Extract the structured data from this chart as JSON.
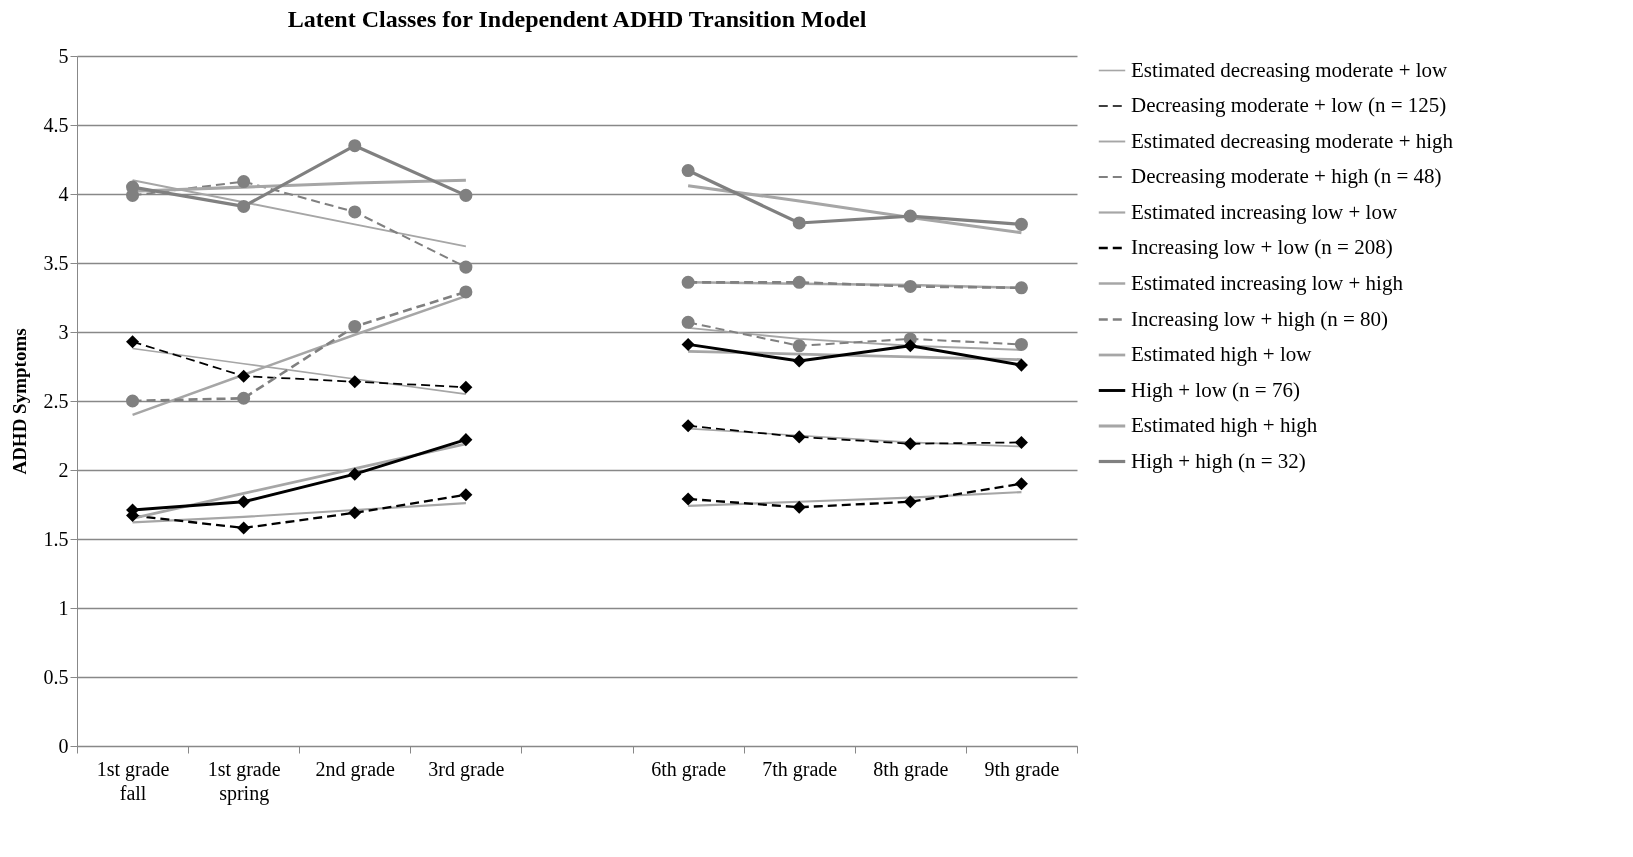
{
  "chart_data": {
    "type": "line",
    "title": "Latent Classes for Independent ADHD Transition Model",
    "ylabel": "ADHD Symptoms",
    "categories": [
      "1st grade fall",
      "1st grade spring",
      "2nd grade",
      "3rd grade",
      null,
      "6th grade",
      "7th grade",
      "8th grade",
      "9th grade"
    ],
    "ylim": [
      0,
      5
    ],
    "yticks": [
      0,
      0.5,
      1,
      1.5,
      2,
      2.5,
      3,
      3.5,
      4,
      4.5,
      5
    ],
    "grid": "y",
    "legend": "right",
    "series": [
      {
        "name": "Estimated  decreasing moderate + low",
        "color": "#a6a6a6",
        "marker": "none",
        "line_style": "solid",
        "values": [
          2.88,
          2.77,
          2.66,
          2.55,
          null,
          2.3,
          2.25,
          2.2,
          2.17
        ]
      },
      {
        "name": "Decreasing moderate + low (n = 125)",
        "color": "#000000",
        "marker": "diamond",
        "line_style": "dashed",
        "values": [
          2.93,
          2.68,
          2.64,
          2.6,
          null,
          2.32,
          2.24,
          2.19,
          2.2
        ]
      },
      {
        "name": "Estimated  decreasing moderate + high",
        "color": "#a6a6a6",
        "marker": "none",
        "line_style": "solid",
        "values": [
          4.1,
          3.94,
          3.78,
          3.62,
          null,
          3.03,
          2.95,
          2.9,
          2.87
        ]
      },
      {
        "name": "Decreasing moderate + high (n = 48)",
        "color": "#808080",
        "marker": "circle",
        "line_style": "dashed",
        "values": [
          3.99,
          4.09,
          3.87,
          3.47,
          null,
          3.07,
          2.9,
          2.95,
          2.91
        ]
      },
      {
        "name": "Estimated  increasing low + low",
        "color": "#a6a6a6",
        "marker": "none",
        "line_style": "solid",
        "values": [
          1.62,
          1.66,
          1.71,
          1.76,
          null,
          1.74,
          1.77,
          1.8,
          1.84
        ]
      },
      {
        "name": "Increasing low + low (n = 208)",
        "color": "#000000",
        "marker": "diamond",
        "line_style": "dashed",
        "values": [
          1.67,
          1.58,
          1.69,
          1.82,
          null,
          1.79,
          1.73,
          1.77,
          1.9
        ]
      },
      {
        "name": "Estimated  increasing low + high",
        "color": "#a6a6a6",
        "marker": "none",
        "line_style": "solid",
        "values": [
          2.4,
          2.69,
          2.98,
          3.26,
          null,
          3.36,
          3.35,
          3.34,
          3.32
        ]
      },
      {
        "name": "Increasing low + high (n = 80)",
        "color": "#808080",
        "marker": "circle",
        "line_style": "dashed",
        "values": [
          2.5,
          2.52,
          3.04,
          3.29,
          null,
          3.36,
          3.36,
          3.33,
          3.32
        ]
      },
      {
        "name": "Estimated  high + low",
        "color": "#a6a6a6",
        "marker": "none",
        "line_style": "solid",
        "values": [
          1.65,
          1.83,
          2.01,
          2.19,
          null,
          2.86,
          2.84,
          2.82,
          2.8
        ]
      },
      {
        "name": "High + low (n = 76)",
        "color": "#000000",
        "marker": "diamond",
        "line_style": "solid",
        "values": [
          1.71,
          1.77,
          1.97,
          2.22,
          null,
          2.91,
          2.79,
          2.9,
          2.76
        ]
      },
      {
        "name": "Estimated  high + high",
        "color": "#a6a6a6",
        "marker": "none",
        "line_style": "solid",
        "values": [
          4.02,
          4.05,
          4.08,
          4.1,
          null,
          4.06,
          3.95,
          3.83,
          3.72
        ]
      },
      {
        "name": "High + high (n = 32)",
        "color": "#808080",
        "marker": "circle",
        "line_style": "solid",
        "values": [
          4.05,
          3.91,
          4.35,
          3.99,
          null,
          4.17,
          3.79,
          3.84,
          3.78
        ]
      }
    ]
  }
}
